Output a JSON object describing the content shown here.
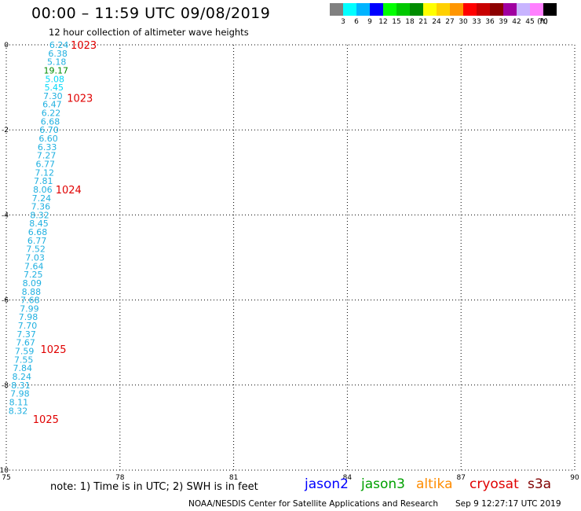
{
  "header": {
    "title": "00:00 – 11:59 UTC 09/08/2019",
    "subtitle": "12 hour collection of altimeter wave heights"
  },
  "colorbar": {
    "unit": "(ft)",
    "items": [
      {
        "label": "3",
        "color": "#808080"
      },
      {
        "label": "6",
        "color": "#00ffff"
      },
      {
        "label": "9",
        "color": "#00b4ff"
      },
      {
        "label": "12",
        "color": "#0000ff"
      },
      {
        "label": "15",
        "color": "#00ff00"
      },
      {
        "label": "18",
        "color": "#00c800"
      },
      {
        "label": "21",
        "color": "#008c00"
      },
      {
        "label": "24",
        "color": "#ffff00"
      },
      {
        "label": "27",
        "color": "#ffd000"
      },
      {
        "label": "30",
        "color": "#ff9600"
      },
      {
        "label": "33",
        "color": "#ff0000"
      },
      {
        "label": "36",
        "color": "#c80000"
      },
      {
        "label": "39",
        "color": "#8c0000"
      },
      {
        "label": "42",
        "color": "#a000a0"
      },
      {
        "label": "45",
        "color": "#c8b4ff"
      },
      {
        "label": "70",
        "color": "#ff80ff"
      },
      {
        "label": "",
        "color": "#000000"
      }
    ]
  },
  "chart_data": {
    "type": "scatter",
    "xlim": [
      75,
      90
    ],
    "ylim": [
      -10,
      0
    ],
    "x_ticks": [
      "75",
      "78",
      "81",
      "84",
      "87",
      "90"
    ],
    "y_ticks": [
      "0",
      "-2",
      "-4",
      "-6",
      "-8",
      "-10"
    ],
    "grid": true,
    "wave_heights": [
      {
        "x": 76.39,
        "y": -0.0,
        "value": "6.24",
        "color": "#20b0e0"
      },
      {
        "x": 76.36,
        "y": -0.2,
        "value": "6.38",
        "color": "#20b0e0"
      },
      {
        "x": 76.33,
        "y": -0.4,
        "value": "5.18",
        "color": "#20b0e0"
      },
      {
        "x": 76.31,
        "y": -0.6,
        "value": "19.17",
        "color": "#008c00"
      },
      {
        "x": 76.28,
        "y": -0.8,
        "value": "5.08",
        "color": "#00d8f8"
      },
      {
        "x": 76.26,
        "y": -1.0,
        "value": "5.45",
        "color": "#00d8f8"
      },
      {
        "x": 76.23,
        "y": -1.2,
        "value": "7.30",
        "color": "#20b0e0"
      },
      {
        "x": 76.21,
        "y": -1.4,
        "value": "6.47",
        "color": "#20b0e0"
      },
      {
        "x": 76.18,
        "y": -1.6,
        "value": "6.22",
        "color": "#20b0e0"
      },
      {
        "x": 76.16,
        "y": -1.8,
        "value": "6.68",
        "color": "#20b0e0"
      },
      {
        "x": 76.13,
        "y": -2.0,
        "value": "6.70",
        "color": "#20b0e0"
      },
      {
        "x": 76.11,
        "y": -2.2,
        "value": "6.60",
        "color": "#20b0e0"
      },
      {
        "x": 76.08,
        "y": -2.4,
        "value": "6.33",
        "color": "#20b0e0"
      },
      {
        "x": 76.06,
        "y": -2.6,
        "value": "7.27",
        "color": "#20b0e0"
      },
      {
        "x": 76.03,
        "y": -2.8,
        "value": "6.77",
        "color": "#20b0e0"
      },
      {
        "x": 76.01,
        "y": -3.0,
        "value": "7.12",
        "color": "#20b0e0"
      },
      {
        "x": 75.98,
        "y": -3.2,
        "value": "7.81",
        "color": "#20b0e0"
      },
      {
        "x": 75.96,
        "y": -3.4,
        "value": "8.06",
        "color": "#20b0e0"
      },
      {
        "x": 75.93,
        "y": -3.6,
        "value": "7.24",
        "color": "#20b0e0"
      },
      {
        "x": 75.91,
        "y": -3.8,
        "value": "7.36",
        "color": "#20b0e0"
      },
      {
        "x": 75.88,
        "y": -4.0,
        "value": "8.32",
        "color": "#20b0e0"
      },
      {
        "x": 75.86,
        "y": -4.2,
        "value": "8.45",
        "color": "#20b0e0"
      },
      {
        "x": 75.83,
        "y": -4.4,
        "value": "6.68",
        "color": "#20b0e0"
      },
      {
        "x": 75.81,
        "y": -4.6,
        "value": "6.77",
        "color": "#20b0e0"
      },
      {
        "x": 75.78,
        "y": -4.8,
        "value": "7.52",
        "color": "#20b0e0"
      },
      {
        "x": 75.76,
        "y": -5.0,
        "value": "7.03",
        "color": "#20b0e0"
      },
      {
        "x": 75.73,
        "y": -5.2,
        "value": "7.64",
        "color": "#20b0e0"
      },
      {
        "x": 75.71,
        "y": -5.4,
        "value": "7.25",
        "color": "#20b0e0"
      },
      {
        "x": 75.68,
        "y": -5.6,
        "value": "8.09",
        "color": "#20b0e0"
      },
      {
        "x": 75.66,
        "y": -5.8,
        "value": "8.88",
        "color": "#20b0e0"
      },
      {
        "x": 75.63,
        "y": -6.0,
        "value": "7.68",
        "color": "#20b0e0"
      },
      {
        "x": 75.61,
        "y": -6.2,
        "value": "7.99",
        "color": "#20b0e0"
      },
      {
        "x": 75.58,
        "y": -6.4,
        "value": "7.98",
        "color": "#20b0e0"
      },
      {
        "x": 75.56,
        "y": -6.6,
        "value": "7.70",
        "color": "#20b0e0"
      },
      {
        "x": 75.53,
        "y": -6.8,
        "value": "7.37",
        "color": "#20b0e0"
      },
      {
        "x": 75.51,
        "y": -7.0,
        "value": "7.67",
        "color": "#20b0e0"
      },
      {
        "x": 75.48,
        "y": -7.2,
        "value": "7.59",
        "color": "#20b0e0"
      },
      {
        "x": 75.46,
        "y": -7.4,
        "value": "7.55",
        "color": "#20b0e0"
      },
      {
        "x": 75.43,
        "y": -7.6,
        "value": "7.84",
        "color": "#20b0e0"
      },
      {
        "x": 75.41,
        "y": -7.8,
        "value": "8.24",
        "color": "#20b0e0"
      },
      {
        "x": 75.38,
        "y": -8.0,
        "value": "8.31",
        "color": "#20b0e0"
      },
      {
        "x": 75.36,
        "y": -8.2,
        "value": "7.98",
        "color": "#20b0e0"
      },
      {
        "x": 75.33,
        "y": -8.4,
        "value": "8.11",
        "color": "#20b0e0"
      },
      {
        "x": 75.31,
        "y": -8.6,
        "value": "8.32",
        "color": "#20b0e0"
      }
    ],
    "pressure_labels": [
      {
        "x": 76.7,
        "y": 0.0,
        "value": "1023",
        "color": "#e00000"
      },
      {
        "x": 76.6,
        "y": -1.25,
        "value": "1023",
        "color": "#e00000"
      },
      {
        "x": 76.3,
        "y": -3.4,
        "value": "1024",
        "color": "#e00000"
      },
      {
        "x": 75.9,
        "y": -7.15,
        "value": "1025",
        "color": "#e00000"
      },
      {
        "x": 75.7,
        "y": -8.8,
        "value": "1025",
        "color": "#e00000"
      }
    ]
  },
  "footer": {
    "note": "note:  1) Time is in UTC;  2) SWH is in feet",
    "satellites": [
      {
        "name": "jason2",
        "color": "#0000ff"
      },
      {
        "name": "jason3",
        "color": "#00a000"
      },
      {
        "name": "altika",
        "color": "#ff8c00"
      },
      {
        "name": "cryosat",
        "color": "#e00000"
      },
      {
        "name": "s3a",
        "color": "#800000"
      }
    ],
    "source": "NOAA/NESDIS Center for Satellite Applications and Research",
    "timestamp": "Sep  9 12:27:17 UTC 2019"
  }
}
